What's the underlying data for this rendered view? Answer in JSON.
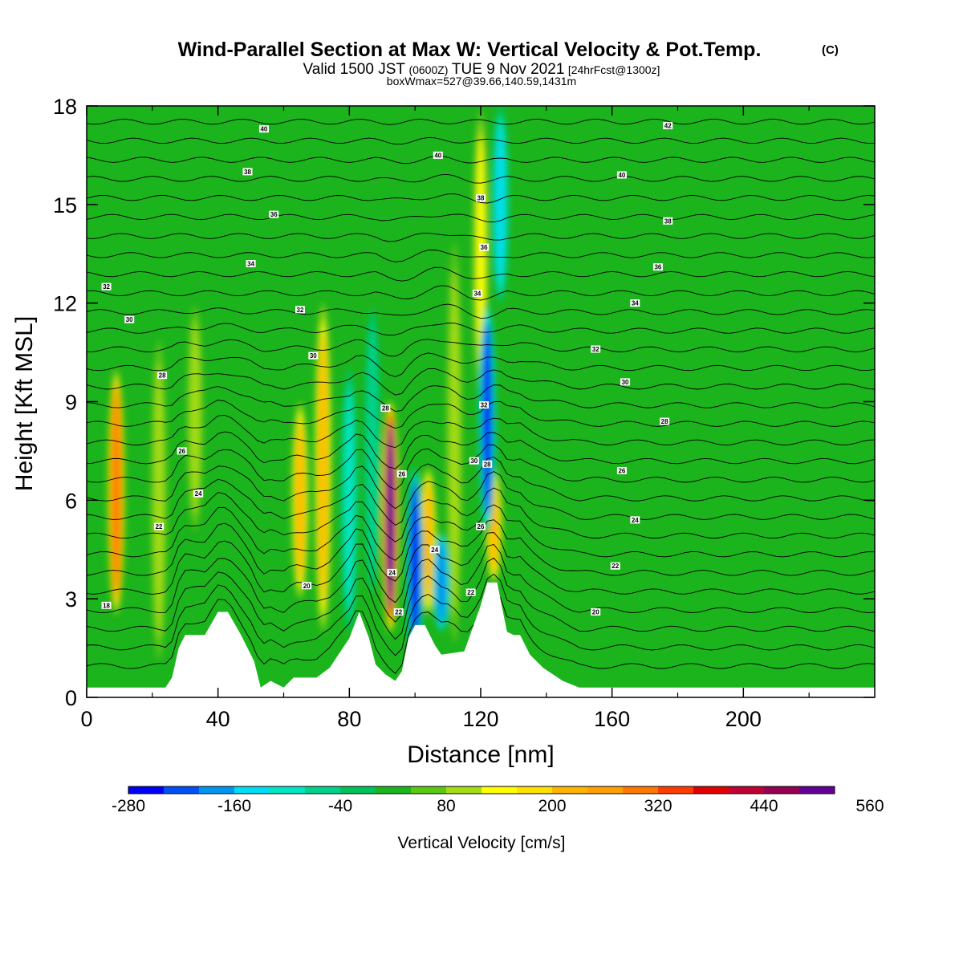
{
  "chart_data": {
    "type": "heatmap",
    "title": {
      "main": "Wind-Parallel Section at Max W: Vertical Velocity & Pot.Temp.",
      "main_mark": "(C)",
      "line2_a": "Valid 1500 JST",
      "line2_b": "(0600Z)",
      "line2_c": "TUE 9 Nov 2021",
      "line2_d": "[24hrFcst@1300z]",
      "line3": "boxWmax=527@39.66,140.59,1431m"
    },
    "xlabel": "Distance [nm]",
    "ylabel": "Height [Kft MSL]",
    "xlim": [
      0,
      240
    ],
    "ylim": [
      0,
      18
    ],
    "xticks": [
      0,
      40,
      80,
      120,
      160,
      200
    ],
    "yticks": [
      0,
      3,
      6,
      9,
      12,
      15,
      18
    ],
    "colorbar": {
      "label": "Vertical Velocity [cm/s]",
      "levels": [
        -280,
        -240,
        -200,
        -160,
        -120,
        -80,
        -40,
        0,
        40,
        80,
        120,
        160,
        200,
        240,
        280,
        320,
        360,
        400,
        440,
        480,
        520,
        560
      ],
      "colors": [
        "#0000f5",
        "#0050f5",
        "#0096f0",
        "#00dcf5",
        "#00e6c3",
        "#00d28c",
        "#00c25a",
        "#1cb41c",
        "#5ac814",
        "#a5dc14",
        "#ffff00",
        "#ffe100",
        "#ffb400",
        "#ffa000",
        "#ff7800",
        "#ff3c00",
        "#e10000",
        "#be0032",
        "#960050",
        "#640096"
      ],
      "tick_labels": [
        "-280",
        "-160",
        "-40",
        "80",
        "200",
        "320",
        "440",
        "560"
      ]
    },
    "background_value_cm_s": 20,
    "updraft_bands": [
      {
        "x": 9,
        "y0": 2.5,
        "y1": 10,
        "peak": 300
      },
      {
        "x": 22,
        "y0": 1,
        "y1": 11,
        "peak": 100
      },
      {
        "x": 33,
        "y0": 5,
        "y1": 12,
        "peak": 100
      },
      {
        "x": 65,
        "y0": 3,
        "y1": 9,
        "peak": 200
      },
      {
        "x": 72,
        "y0": 2,
        "y1": 12,
        "peak": 200
      },
      {
        "x": 92.5,
        "y0": 2,
        "y1": 9,
        "peak": 500
      },
      {
        "x": 104,
        "y0": 2.5,
        "y1": 7,
        "peak": 200
      },
      {
        "x": 112,
        "y0": 1.5,
        "y1": 14,
        "peak": 100
      },
      {
        "x": 124,
        "y0": 3.5,
        "y1": 7,
        "peak": 200
      },
      {
        "x": 120,
        "y0": 9,
        "y1": 18,
        "peak": 120
      }
    ],
    "downdraft_bands": [
      {
        "x": 80,
        "y0": 2,
        "y1": 10,
        "peak": -120
      },
      {
        "x": 87,
        "y0": 3,
        "y1": 12,
        "peak": -80
      },
      {
        "x": 100,
        "y0": 1,
        "y1": 7,
        "peak": -260
      },
      {
        "x": 108,
        "y0": 2,
        "y1": 5,
        "peak": -200
      },
      {
        "x": 122,
        "y0": 5,
        "y1": 12,
        "peak": -250
      },
      {
        "x": 126,
        "y0": 12,
        "y1": 18,
        "peak": -140
      }
    ],
    "terrain_kft": [
      [
        0,
        0.3
      ],
      [
        24,
        0.3
      ],
      [
        26,
        0.6
      ],
      [
        28,
        1.5
      ],
      [
        30,
        1.9
      ],
      [
        36,
        1.9
      ],
      [
        40,
        2.6
      ],
      [
        43,
        2.6
      ],
      [
        47,
        1.9
      ],
      [
        51,
        1.1
      ],
      [
        53,
        0.3
      ],
      [
        56,
        0.5
      ],
      [
        60,
        0.3
      ],
      [
        63,
        0.6
      ],
      [
        70,
        0.6
      ],
      [
        74,
        0.9
      ],
      [
        80,
        1.8
      ],
      [
        83,
        2.6
      ],
      [
        86,
        1.8
      ],
      [
        88,
        1.0
      ],
      [
        91,
        0.7
      ],
      [
        94,
        0.5
      ],
      [
        96,
        0.8
      ],
      [
        98,
        1.8
      ],
      [
        100,
        2.2
      ],
      [
        103,
        2.2
      ],
      [
        106,
        1.6
      ],
      [
        108,
        1.3
      ],
      [
        115,
        1.4
      ],
      [
        120,
        2.8
      ],
      [
        122,
        3.5
      ],
      [
        125,
        3.5
      ],
      [
        128,
        2.0
      ],
      [
        130,
        1.9
      ],
      [
        132,
        1.9
      ],
      [
        135,
        1.3
      ],
      [
        139,
        0.9
      ],
      [
        145,
        0.5
      ],
      [
        150,
        0.3
      ],
      [
        240,
        0.3
      ]
    ],
    "theta_contour_labels": [
      {
        "x": 6,
        "y": 2.8,
        "label": "18"
      },
      {
        "x": 22,
        "y": 5.2,
        "label": "22"
      },
      {
        "x": 29,
        "y": 7.5,
        "label": "26"
      },
      {
        "x": 34,
        "y": 6.2,
        "label": "24"
      },
      {
        "x": 23,
        "y": 9.8,
        "label": "28"
      },
      {
        "x": 13,
        "y": 11.5,
        "label": "30"
      },
      {
        "x": 6,
        "y": 12.5,
        "label": "32"
      },
      {
        "x": 65,
        "y": 11.8,
        "label": "32"
      },
      {
        "x": 69,
        "y": 10.4,
        "label": "30"
      },
      {
        "x": 67,
        "y": 3.4,
        "label": "20"
      },
      {
        "x": 50,
        "y": 13.2,
        "label": "34"
      },
      {
        "x": 57,
        "y": 14.7,
        "label": "36"
      },
      {
        "x": 49,
        "y": 16.0,
        "label": "38"
      },
      {
        "x": 54,
        "y": 17.3,
        "label": "40"
      },
      {
        "x": 107,
        "y": 16.5,
        "label": "40"
      },
      {
        "x": 120,
        "y": 15.2,
        "label": "38"
      },
      {
        "x": 121,
        "y": 13.7,
        "label": "36"
      },
      {
        "x": 119,
        "y": 12.3,
        "label": "34"
      },
      {
        "x": 121,
        "y": 8.9,
        "label": "32"
      },
      {
        "x": 118,
        "y": 7.2,
        "label": "30"
      },
      {
        "x": 91,
        "y": 8.8,
        "label": "28"
      },
      {
        "x": 96,
        "y": 6.8,
        "label": "26"
      },
      {
        "x": 93,
        "y": 3.8,
        "label": "24"
      },
      {
        "x": 95,
        "y": 2.6,
        "label": "22"
      },
      {
        "x": 106,
        "y": 4.5,
        "label": "24"
      },
      {
        "x": 117,
        "y": 3.2,
        "label": "22"
      },
      {
        "x": 120,
        "y": 5.2,
        "label": "26"
      },
      {
        "x": 122,
        "y": 7.1,
        "label": "28"
      },
      {
        "x": 177,
        "y": 17.4,
        "label": "42"
      },
      {
        "x": 163,
        "y": 15.9,
        "label": "40"
      },
      {
        "x": 177,
        "y": 14.5,
        "label": "38"
      },
      {
        "x": 174,
        "y": 13.1,
        "label": "36"
      },
      {
        "x": 167,
        "y": 12.0,
        "label": "34"
      },
      {
        "x": 155,
        "y": 10.6,
        "label": "32"
      },
      {
        "x": 164,
        "y": 9.6,
        "label": "30"
      },
      {
        "x": 176,
        "y": 8.4,
        "label": "28"
      },
      {
        "x": 163,
        "y": 6.9,
        "label": "26"
      },
      {
        "x": 167,
        "y": 5.4,
        "label": "24"
      },
      {
        "x": 161,
        "y": 4.0,
        "label": "22"
      },
      {
        "x": 155,
        "y": 2.6,
        "label": "20"
      }
    ]
  }
}
